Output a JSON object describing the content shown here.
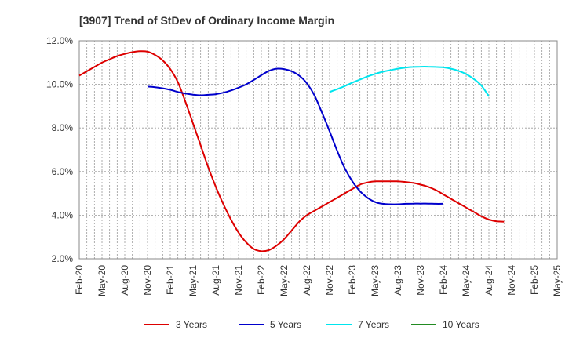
{
  "chart_data": {
    "type": "line",
    "title": "[3907]  Trend of StDev of Ordinary Income Margin",
    "xlabel": "",
    "ylabel": "",
    "ylim": [
      2.0,
      12.0
    ],
    "yticks": [
      "2.0%",
      "4.0%",
      "6.0%",
      "8.0%",
      "10.0%",
      "12.0%"
    ],
    "ytick_values": [
      2,
      4,
      6,
      8,
      10,
      12
    ],
    "xticks": [
      "Feb-20",
      "May-20",
      "Aug-20",
      "Nov-20",
      "Feb-21",
      "May-21",
      "Aug-21",
      "Nov-21",
      "Feb-22",
      "May-22",
      "Aug-22",
      "Nov-22",
      "Feb-23",
      "May-23",
      "Aug-23",
      "Nov-23",
      "Feb-24",
      "May-24",
      "Aug-24",
      "Nov-24",
      "Feb-25",
      "May-25"
    ],
    "grid": true,
    "legend_position": "bottom",
    "series": [
      {
        "name": "3 Years",
        "color": "#dd0000",
        "points": [
          [
            "Feb-20",
            10.4
          ],
          [
            "Mar-20",
            10.6
          ],
          [
            "Apr-20",
            10.8
          ],
          [
            "May-20",
            11.0
          ],
          [
            "Jun-20",
            11.15
          ],
          [
            "Jul-20",
            11.3
          ],
          [
            "Aug-20",
            11.4
          ],
          [
            "Sep-20",
            11.48
          ],
          [
            "Oct-20",
            11.52
          ],
          [
            "Nov-20",
            11.5
          ],
          [
            "Dec-20",
            11.35
          ],
          [
            "Jan-21",
            11.1
          ],
          [
            "Feb-21",
            10.7
          ],
          [
            "Mar-21",
            10.1
          ],
          [
            "Apr-21",
            9.2
          ],
          [
            "May-21",
            8.2
          ],
          [
            "Jun-21",
            7.2
          ],
          [
            "Jul-21",
            6.2
          ],
          [
            "Aug-21",
            5.3
          ],
          [
            "Sep-21",
            4.5
          ],
          [
            "Oct-21",
            3.8
          ],
          [
            "Nov-21",
            3.2
          ],
          [
            "Dec-21",
            2.75
          ],
          [
            "Jan-22",
            2.45
          ],
          [
            "Feb-22",
            2.35
          ],
          [
            "Mar-22",
            2.4
          ],
          [
            "Apr-22",
            2.6
          ],
          [
            "May-22",
            2.9
          ],
          [
            "Jun-22",
            3.3
          ],
          [
            "Jul-22",
            3.7
          ],
          [
            "Aug-22",
            4.0
          ],
          [
            "Sep-22",
            4.2
          ],
          [
            "Oct-22",
            4.4
          ],
          [
            "Nov-22",
            4.6
          ],
          [
            "Dec-22",
            4.8
          ],
          [
            "Jan-23",
            5.0
          ],
          [
            "Feb-23",
            5.2
          ],
          [
            "Mar-23",
            5.4
          ],
          [
            "Apr-23",
            5.5
          ],
          [
            "May-23",
            5.55
          ],
          [
            "Jun-23",
            5.55
          ],
          [
            "Jul-23",
            5.55
          ],
          [
            "Aug-23",
            5.55
          ],
          [
            "Sep-23",
            5.52
          ],
          [
            "Oct-23",
            5.48
          ],
          [
            "Nov-23",
            5.4
          ],
          [
            "Dec-23",
            5.3
          ],
          [
            "Jan-24",
            5.15
          ],
          [
            "Feb-24",
            4.95
          ],
          [
            "Mar-24",
            4.75
          ],
          [
            "Apr-24",
            4.55
          ],
          [
            "May-24",
            4.35
          ],
          [
            "Jun-24",
            4.15
          ],
          [
            "Jul-24",
            3.95
          ],
          [
            "Aug-24",
            3.8
          ],
          [
            "Sep-24",
            3.72
          ],
          [
            "Oct-24",
            3.7
          ]
        ]
      },
      {
        "name": "5 Years",
        "color": "#0000cc",
        "points": [
          [
            "Nov-20",
            9.9
          ],
          [
            "Dec-20",
            9.87
          ],
          [
            "Jan-21",
            9.82
          ],
          [
            "Feb-21",
            9.75
          ],
          [
            "Mar-21",
            9.65
          ],
          [
            "Apr-21",
            9.58
          ],
          [
            "May-21",
            9.53
          ],
          [
            "Jun-21",
            9.5
          ],
          [
            "Jul-21",
            9.52
          ],
          [
            "Aug-21",
            9.55
          ],
          [
            "Sep-21",
            9.62
          ],
          [
            "Oct-21",
            9.72
          ],
          [
            "Nov-21",
            9.85
          ],
          [
            "Dec-21",
            10.0
          ],
          [
            "Jan-22",
            10.2
          ],
          [
            "Feb-22",
            10.42
          ],
          [
            "Mar-22",
            10.62
          ],
          [
            "Apr-22",
            10.72
          ],
          [
            "May-22",
            10.7
          ],
          [
            "Jun-22",
            10.6
          ],
          [
            "Jul-22",
            10.4
          ],
          [
            "Aug-22",
            10.05
          ],
          [
            "Sep-22",
            9.5
          ],
          [
            "Oct-22",
            8.7
          ],
          [
            "Nov-22",
            7.85
          ],
          [
            "Dec-22",
            6.95
          ],
          [
            "Jan-23",
            6.15
          ],
          [
            "Feb-23",
            5.55
          ],
          [
            "Mar-23",
            5.1
          ],
          [
            "Apr-23",
            4.8
          ],
          [
            "May-23",
            4.6
          ],
          [
            "Jun-23",
            4.52
          ],
          [
            "Jul-23",
            4.5
          ],
          [
            "Aug-23",
            4.5
          ],
          [
            "Sep-23",
            4.52
          ],
          [
            "Oct-23",
            4.53
          ],
          [
            "Nov-23",
            4.53
          ],
          [
            "Dec-23",
            4.53
          ],
          [
            "Jan-24",
            4.52
          ],
          [
            "Feb-24",
            4.52
          ]
        ]
      },
      {
        "name": "7 Years",
        "color": "#00e5ee",
        "points": [
          [
            "Nov-22",
            9.65
          ],
          [
            "Dec-22",
            9.78
          ],
          [
            "Jan-23",
            9.92
          ],
          [
            "Feb-23",
            10.08
          ],
          [
            "Mar-23",
            10.22
          ],
          [
            "Apr-23",
            10.36
          ],
          [
            "May-23",
            10.48
          ],
          [
            "Jun-23",
            10.58
          ],
          [
            "Jul-23",
            10.65
          ],
          [
            "Aug-23",
            10.72
          ],
          [
            "Sep-23",
            10.77
          ],
          [
            "Oct-23",
            10.8
          ],
          [
            "Nov-23",
            10.81
          ],
          [
            "Dec-23",
            10.81
          ],
          [
            "Jan-24",
            10.8
          ],
          [
            "Feb-24",
            10.78
          ],
          [
            "Mar-24",
            10.72
          ],
          [
            "Apr-24",
            10.62
          ],
          [
            "May-24",
            10.47
          ],
          [
            "Jun-24",
            10.25
          ],
          [
            "Jul-24",
            9.95
          ],
          [
            "Aug-24",
            9.45
          ]
        ]
      },
      {
        "name": "10 Years",
        "color": "#228b22",
        "points": []
      }
    ]
  }
}
